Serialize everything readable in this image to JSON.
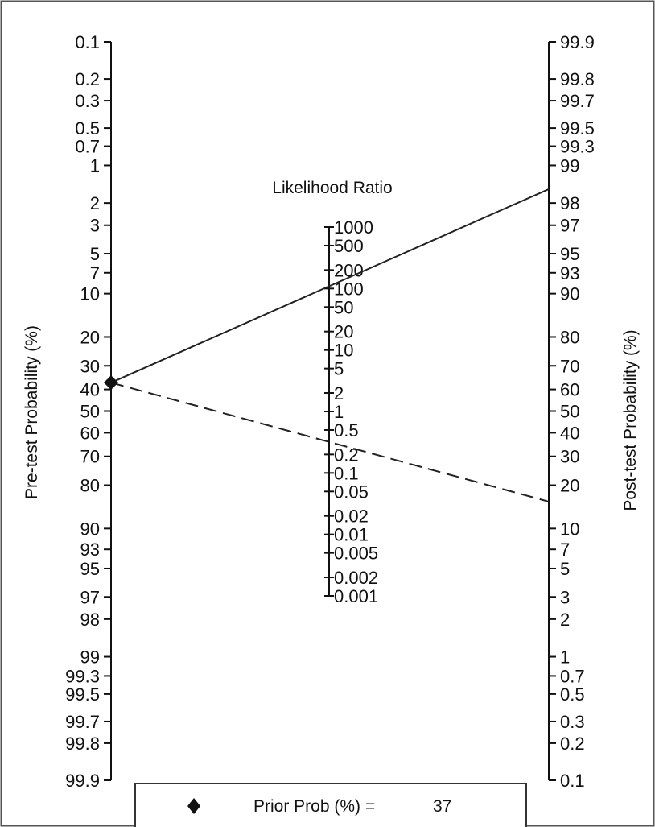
{
  "chart_data": {
    "type": "nomogram",
    "title": "",
    "left_axis": {
      "label": "Pre-test Probability (%)",
      "ticks": [
        0.1,
        0.2,
        0.3,
        0.5,
        0.7,
        1,
        2,
        3,
        5,
        7,
        10,
        20,
        30,
        40,
        50,
        60,
        70,
        80,
        90,
        93,
        95,
        97,
        98,
        99,
        99.3,
        99.5,
        99.7,
        99.8,
        99.9
      ]
    },
    "middle_axis": {
      "label": "Likelihood Ratio",
      "ticks": [
        1000,
        500,
        200,
        100,
        50,
        20,
        10,
        5,
        2,
        1,
        0.5,
        0.2,
        0.1,
        0.05,
        0.02,
        0.01,
        0.005,
        0.002,
        0.001
      ]
    },
    "right_axis": {
      "label": "Post-test Probability (%)",
      "ticks": [
        99.9,
        99.8,
        99.7,
        99.5,
        99.3,
        99,
        98,
        97,
        95,
        93,
        90,
        80,
        70,
        60,
        50,
        40,
        30,
        20,
        10,
        7,
        5,
        3,
        2,
        1,
        0.7,
        0.5,
        0.3,
        0.2,
        0.1
      ]
    },
    "prior_probability": 37,
    "lines": [
      {
        "style": "solid",
        "likelihood_ratio": 109,
        "posterior_probability": 98.5
      },
      {
        "style": "dashed",
        "likelihood_ratio": 0.32,
        "posterior_probability": 16
      }
    ],
    "legend": {
      "marker": "diamond",
      "label": "Prior Prob (%) =",
      "value": "37"
    }
  }
}
